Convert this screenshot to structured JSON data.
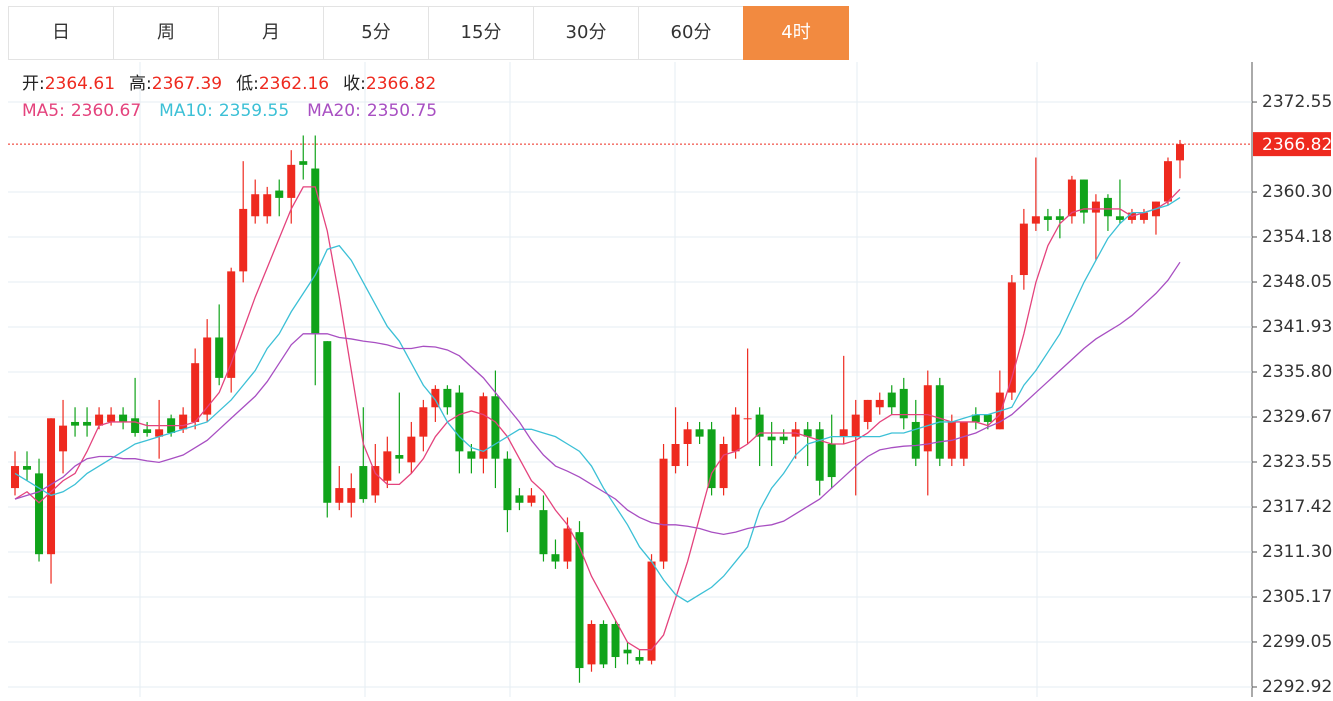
{
  "tabs": {
    "items": [
      "日",
      "周",
      "月",
      "5分",
      "15分",
      "30分",
      "60分",
      "4时"
    ],
    "active": 7
  },
  "chart_data": {
    "type": "candlestick",
    "up_color": "#ee2a1f",
    "down_color": "#10a31a",
    "ohlc_labels": [
      "开",
      "高",
      "低",
      "收"
    ],
    "separator": ":",
    "ylim": [
      2291.56,
      2378.0
    ],
    "yticks": [
      2372.55,
      {
        "value": 2360.3,
        "label": "2360.30"
      },
      2354.18,
      2348.05,
      2341.93,
      {
        "value": 2335.8,
        "label": "2335.80"
      },
      2329.67,
      2323.55,
      2317.42,
      {
        "value": 2311.3,
        "label": "2311.30"
      },
      2305.17,
      2299.05,
      2292.92
    ],
    "grid": true,
    "open": [
      2320,
      2323,
      2322,
      2311,
      2325,
      2329,
      2329,
      2328.5,
      2329,
      2330,
      2329.5,
      2328,
      2327,
      2329.5,
      2328,
      2329,
      2330,
      2340.5,
      2335,
      2349.5,
      2357,
      2357,
      2360.5,
      2359.5,
      2364.5,
      2363.5,
      2340,
      2318,
      2318,
      2323,
      2319,
      2321,
      2324.5,
      2323.5,
      2327,
      2331,
      2333.5,
      2333,
      2325,
      2324,
      2332.5,
      2324,
      2319,
      2318,
      2317,
      2311,
      2310,
      2314,
      2296,
      2301.5,
      2301.5,
      2298,
      2297,
      2296.5,
      2310,
      2323,
      2326,
      2328,
      2328,
      2320,
      2325,
      2329.5,
      2330,
      2327,
      2327,
      2327,
      2328,
      2328,
      2326,
      2327,
      2327,
      2329,
      2331,
      2333,
      2333.5,
      2329,
      2325,
      2334,
      2324,
      2324,
      2330,
      2330,
      2328,
      2333,
      2349,
      2356,
      2357,
      2357,
      2357,
      2362,
      2357.5,
      2359.5,
      2357,
      2356.5,
      2356.5,
      2357,
      2359,
      2364.61
    ],
    "high": [
      2325,
      2325,
      2324,
      2329.5,
      2332,
      2331,
      2331,
      2331,
      2331,
      2331,
      2335,
      2329,
      2332,
      2330,
      2331,
      2339,
      2343,
      2345,
      2350,
      2364.5,
      2362,
      2361,
      2362,
      2366,
      2368,
      2368,
      2340,
      2323,
      2322,
      2331,
      2326,
      2327,
      2333,
      2329,
      2332,
      2334,
      2334,
      2334,
      2326,
      2333,
      2336,
      2325,
      2320,
      2320,
      2319,
      2313,
      2316,
      2315.5,
      2302,
      2302,
      2302,
      2299,
      2298,
      2311,
      2326,
      2331,
      2329,
      2329,
      2329,
      2327,
      2331,
      2339,
      2331,
      2329,
      2328,
      2329,
      2329,
      2329,
      2330,
      2338,
      2332,
      2332,
      2333,
      2334,
      2335,
      2332,
      2336,
      2335,
      2330,
      2329,
      2331,
      2330,
      2336,
      2349,
      2358,
      2365,
      2358,
      2358,
      2362.5,
      2362,
      2360,
      2360,
      2362,
      2358,
      2358,
      2359,
      2365,
      2367.39
    ],
    "low": [
      2319,
      2321,
      2310,
      2307,
      2322,
      2327,
      2327,
      2328,
      2328.5,
      2328,
      2327,
      2327,
      2324,
      2327,
      2327.5,
      2328,
      2329,
      2334,
      2333,
      2348,
      2356,
      2356,
      2357,
      2356,
      2362,
      2334,
      2316,
      2317,
      2316,
      2318,
      2318,
      2320,
      2322,
      2322,
      2325,
      2329,
      2330,
      2322,
      2322,
      2322,
      2320,
      2314,
      2317,
      2317.5,
      2310,
      2309,
      2309,
      2293.5,
      2295,
      2295.5,
      2295.5,
      2296,
      2296,
      2296,
      2309,
      2322,
      2323,
      2326,
      2319,
      2319,
      2324,
      2326,
      2323,
      2323,
      2326,
      2324,
      2323,
      2319,
      2320,
      2326,
      2319,
      2328,
      2330,
      2330,
      2328,
      2323,
      2319,
      2323,
      2323,
      2323,
      2328,
      2328,
      2328,
      2332,
      2347,
      2355,
      2355,
      2354,
      2356,
      2356,
      2351,
      2355,
      2356,
      2356,
      2356,
      2354.5,
      2358.5,
      2362.16
    ],
    "close": [
      2323,
      2322.5,
      2311,
      2329.5,
      2328.5,
      2328.5,
      2328.5,
      2330,
      2330,
      2329,
      2327.5,
      2327.5,
      2328,
      2327.5,
      2330,
      2337,
      2340.5,
      2335,
      2349.5,
      2358,
      2360,
      2360,
      2359.5,
      2364,
      2364,
      2341,
      2318,
      2320,
      2320,
      2318.5,
      2323,
      2325,
      2324,
      2327,
      2331,
      2333.5,
      2331,
      2325,
      2324,
      2332.5,
      2324,
      2317,
      2318,
      2319,
      2311,
      2310,
      2314.5,
      2295.5,
      2301.5,
      2296,
      2297,
      2297.5,
      2296.5,
      2310,
      2324,
      2326,
      2328,
      2327,
      2320,
      2326,
      2330,
      2329.5,
      2327,
      2326.5,
      2326.5,
      2328,
      2327,
      2321,
      2321.5,
      2328,
      2330,
      2332,
      2332,
      2331,
      2329.5,
      2324,
      2334,
      2324,
      2329,
      2329,
      2329,
      2329,
      2333,
      2348,
      2356,
      2357,
      2356.5,
      2356.5,
      2362,
      2357.5,
      2359,
      2357,
      2356.5,
      2357.5,
      2357.5,
      2359,
      2364.5,
      2366.82
    ],
    "series": [
      {
        "name": "MA5",
        "color": "#e4437d",
        "values": [
          2318.5,
          2319.5,
          2318,
          2319.5,
          2321,
          2322,
          2325,
          2328.5,
          2329,
          2329,
          2329,
          2328.5,
          2328.5,
          2328.5,
          2328.5,
          2329,
          2331,
          2333,
          2337,
          2341.5,
          2346,
          2350,
          2354,
          2358,
          2361,
          2361,
          2355,
          2346,
          2336,
          2326,
          2322,
          2320.5,
          2320.5,
          2322,
          2324,
          2327,
          2329,
          2330,
          2330.5,
          2330,
          2329,
          2327,
          2324,
          2321,
          2319.5,
          2317,
          2315,
          2312,
          2308,
          2305,
          2302,
          2299,
          2298,
          2298,
          2300,
          2305,
          2310,
          2316,
          2322,
          2324.5,
          2325,
          2326,
          2327.5,
          2327.5,
          2327.5,
          2327.5,
          2327,
          2326.5,
          2326,
          2326,
          2326.5,
          2327.5,
          2329,
          2330,
          2330,
          2330,
          2330,
          2329.5,
          2329,
          2329,
          2329,
          2328.5,
          2330,
          2335,
          2341,
          2348,
          2353,
          2356,
          2357.5,
          2358,
          2358,
          2358,
          2358,
          2357,
          2357.5,
          2358,
          2359,
          2360.67
        ]
      },
      {
        "name": "MA10",
        "color": "#3cc0d6",
        "values": [
          2322,
          2321,
          2320,
          2319,
          2319.5,
          2320.5,
          2322,
          2323,
          2324,
          2325,
          2326,
          2326.5,
          2327,
          2327.5,
          2328,
          2328.5,
          2329,
          2330.5,
          2332,
          2334,
          2336,
          2339,
          2341,
          2344,
          2346.5,
          2349,
          2352.5,
          2353,
          2351,
          2348,
          2345,
          2342,
          2340,
          2337,
          2334,
          2332,
          2329,
          2327,
          2325.5,
          2325,
          2326,
          2327,
          2328,
          2328,
          2327.5,
          2327,
          2326,
          2325,
          2323,
          2320,
          2317.5,
          2315,
          2312,
          2310,
          2307.5,
          2305.5,
          2304.5,
          2305.5,
          2306.5,
          2308,
          2310,
          2312,
          2317,
          2320,
          2322,
          2324.5,
          2326,
          2326.5,
          2327,
          2327,
          2327,
          2327,
          2327,
          2327.5,
          2327.5,
          2328,
          2328.5,
          2329,
          2329,
          2329.5,
          2330,
          2330,
          2330.5,
          2331,
          2334,
          2336,
          2338.5,
          2341,
          2344.5,
          2348,
          2351,
          2354,
          2356,
          2357.5,
          2357.5,
          2358,
          2358.5,
          2359.55
        ]
      },
      {
        "name": "MA20",
        "color": "#a84fc2",
        "values": [
          2318.5,
          2319,
          2319.5,
          2320.5,
          2321.5,
          2323,
          2324,
          2324.3,
          2324.3,
          2324,
          2324,
          2323.7,
          2323.5,
          2324,
          2324.5,
          2325.5,
          2326.5,
          2328,
          2329.5,
          2331,
          2332.5,
          2334.5,
          2337,
          2339.5,
          2341,
          2341,
          2341,
          2340.5,
          2340.3,
          2340,
          2339.8,
          2339.5,
          2339,
          2339,
          2339.3,
          2339.2,
          2338.8,
          2338,
          2336.5,
          2335,
          2333,
          2331,
          2329,
          2326.5,
          2324.5,
          2323,
          2322.3,
          2321.5,
          2320.5,
          2319.5,
          2318.5,
          2317,
          2316,
          2315.3,
          2315,
          2315,
          2314.8,
          2314.5,
          2314,
          2313.7,
          2314,
          2314.5,
          2314.8,
          2315,
          2315.5,
          2316.5,
          2317.5,
          2318.5,
          2320,
          2321.5,
          2323,
          2324.3,
          2325.2,
          2325.5,
          2325.7,
          2325.8,
          2326,
          2326.3,
          2326.5,
          2327,
          2327.5,
          2328.3,
          2329,
          2330,
          2331.5,
          2333,
          2334.5,
          2336,
          2337.5,
          2339,
          2340.3,
          2341.3,
          2342.3,
          2343.5,
          2345,
          2346.5,
          2348.3,
          2350.75
        ]
      }
    ]
  }
}
